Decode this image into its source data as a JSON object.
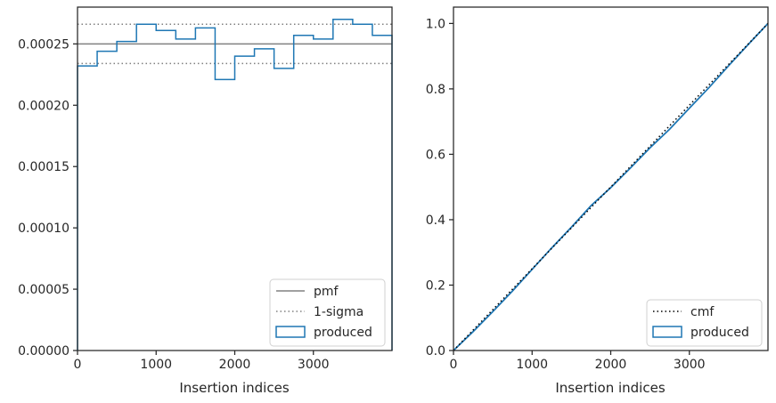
{
  "chart_data": [
    {
      "type": "histogram",
      "xlabel": "Insertion indices",
      "ylabel": "",
      "xlim": [
        0,
        4000
      ],
      "ylim": [
        0,
        0.00028
      ],
      "xticks": [
        0,
        1000,
        2000,
        3000
      ],
      "xtick_labels": [
        "0",
        "1000",
        "2000",
        "3000"
      ],
      "yticks": [
        0,
        5e-05,
        0.0001,
        0.00015,
        0.0002,
        0.00025
      ],
      "ytick_labels": [
        "0.00000",
        "0.00005",
        "0.00010",
        "0.00015",
        "0.00020",
        "0.00025"
      ],
      "grid": false,
      "legend_position": "lower right",
      "legend": [
        "pmf",
        "1-sigma",
        "produced"
      ],
      "pmf": 0.00025,
      "sigma_band": [
        0.000234,
        0.000266
      ],
      "series": [
        {
          "name": "produced",
          "bin_edges": [
            0,
            250,
            500,
            750,
            1000,
            1250,
            1500,
            1750,
            2000,
            2250,
            2500,
            2750,
            3000,
            3250,
            3500,
            3750,
            4000
          ],
          "values": [
            0.000232,
            0.000244,
            0.000252,
            0.000266,
            0.000261,
            0.000254,
            0.000263,
            0.000221,
            0.00024,
            0.000246,
            0.00023,
            0.000257,
            0.000254,
            0.00027,
            0.000266,
            0.000257
          ]
        }
      ],
      "colors": {
        "produced": "#1f77b4",
        "pmf": "#808080",
        "sigma": "#808080"
      }
    },
    {
      "type": "line",
      "xlabel": "Insertion indices",
      "ylabel": "",
      "xlim": [
        0,
        4000
      ],
      "ylim": [
        0,
        1.05
      ],
      "xticks": [
        0,
        1000,
        2000,
        3000
      ],
      "xtick_labels": [
        "0",
        "1000",
        "2000",
        "3000"
      ],
      "yticks": [
        0,
        0.2,
        0.4,
        0.6,
        0.8,
        1.0
      ],
      "ytick_labels": [
        "0.0",
        "0.2",
        "0.4",
        "0.6",
        "0.8",
        "1.0"
      ],
      "grid": false,
      "legend_position": "lower right",
      "legend": [
        "cmf",
        "produced"
      ],
      "cmf": {
        "x": [
          0,
          4000
        ],
        "y": [
          0,
          1.0
        ]
      },
      "series": [
        {
          "name": "produced",
          "x": [
            0,
            250,
            500,
            750,
            1000,
            1250,
            1500,
            1750,
            2000,
            2250,
            2500,
            2750,
            3000,
            3250,
            3500,
            3750,
            4000
          ],
          "y": [
            0,
            0.058,
            0.119,
            0.182,
            0.248,
            0.314,
            0.377,
            0.443,
            0.498,
            0.558,
            0.62,
            0.677,
            0.741,
            0.804,
            0.871,
            0.936,
            1.0
          ]
        }
      ],
      "colors": {
        "produced": "#1f77b4",
        "cmf": "#000000"
      }
    }
  ]
}
